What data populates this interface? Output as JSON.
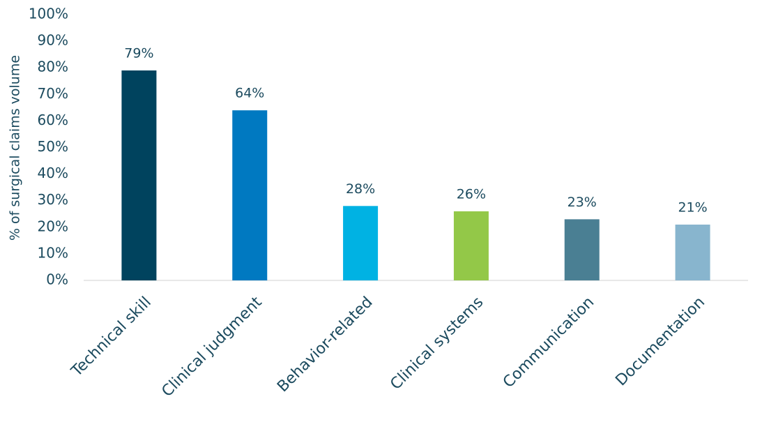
{
  "chart_data": {
    "type": "bar",
    "y_label": "% of surgical claims volume",
    "categories": [
      "Technical skill",
      "Clinical judgment",
      "Behavior-related",
      "Clinical systems",
      "Communication",
      "Documentation"
    ],
    "values": [
      79,
      64,
      28,
      26,
      23,
      21
    ],
    "value_labels": [
      "79%",
      "64%",
      "28%",
      "26%",
      "23%",
      "21%"
    ],
    "colors": [
      "#00435e",
      "#0079c1",
      "#00b2e3",
      "#93c848",
      "#4a7f93",
      "#88b5ce"
    ],
    "ylim": [
      0,
      100
    ],
    "yticks": [
      {
        "value": 0,
        "label": "0%"
      },
      {
        "value": 10,
        "label": "10%"
      },
      {
        "value": 20,
        "label": "20%"
      },
      {
        "value": 30,
        "label": "30%"
      },
      {
        "value": 40,
        "label": "40%"
      },
      {
        "value": 50,
        "label": "50%"
      },
      {
        "value": 60,
        "label": "60%"
      },
      {
        "value": 70,
        "label": "70%"
      },
      {
        "value": 80,
        "label": "80%"
      },
      {
        "value": 90,
        "label": "90%"
      },
      {
        "value": 100,
        "label": "100%"
      }
    ],
    "grid": false
  }
}
